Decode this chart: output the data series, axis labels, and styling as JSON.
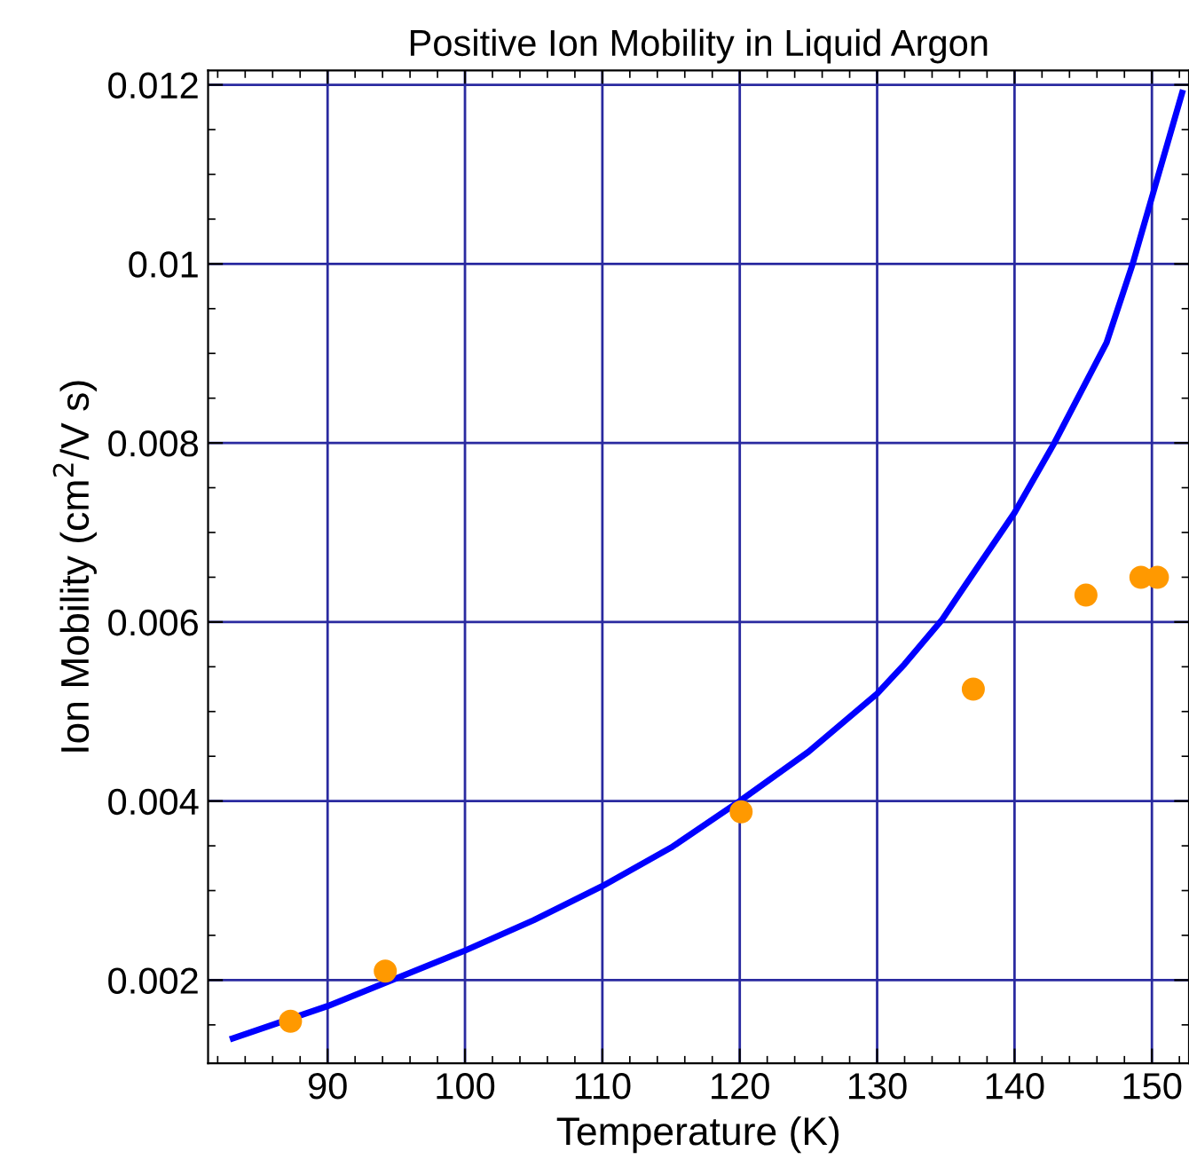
{
  "chart_data": {
    "type": "scatter",
    "title": "Positive Ion Mobility in Liquid Argon",
    "xlabel": "Temperature (K)",
    "ylabel": "Ion Mobility (cm$^{2}$/V s)",
    "series": [
      {
        "type": "line",
        "color": "#0000ff",
        "x": [
          83.1,
          90,
          100,
          105,
          110,
          115,
          120,
          125,
          130,
          132,
          134.7,
          136.5,
          140,
          142.9,
          146.7,
          148.6,
          150.2,
          152.2
        ],
        "values": [
          0.00135,
          0.00171,
          0.00233,
          0.00267,
          0.00305,
          0.00348,
          0.004,
          0.00455,
          0.0052,
          0.00553,
          0.00602,
          0.00643,
          0.00722,
          0.008,
          0.00912,
          0.01,
          0.01085,
          0.01191
        ]
      },
      {
        "color": "#ff9900",
        "marker": "circle",
        "x": [
          87.3,
          94.2,
          120.1,
          137.0,
          145.2,
          149.2,
          150.4
        ],
        "values": [
          0.00154,
          0.0021,
          0.00388,
          0.00525,
          0.0063,
          0.0065,
          0.0065
        ]
      }
    ],
    "xlim": [
      81.3,
      152.7
    ],
    "ylim": [
      0.00107,
      0.01216
    ],
    "xticks": [
      90,
      100,
      110,
      120,
      130,
      140,
      150
    ],
    "yticks": [
      0.002,
      0.004,
      0.006,
      0.008,
      {
        "value": 0.01,
        "label": "0.01"
      },
      0.012
    ],
    "grid": true,
    "legend": false
  }
}
